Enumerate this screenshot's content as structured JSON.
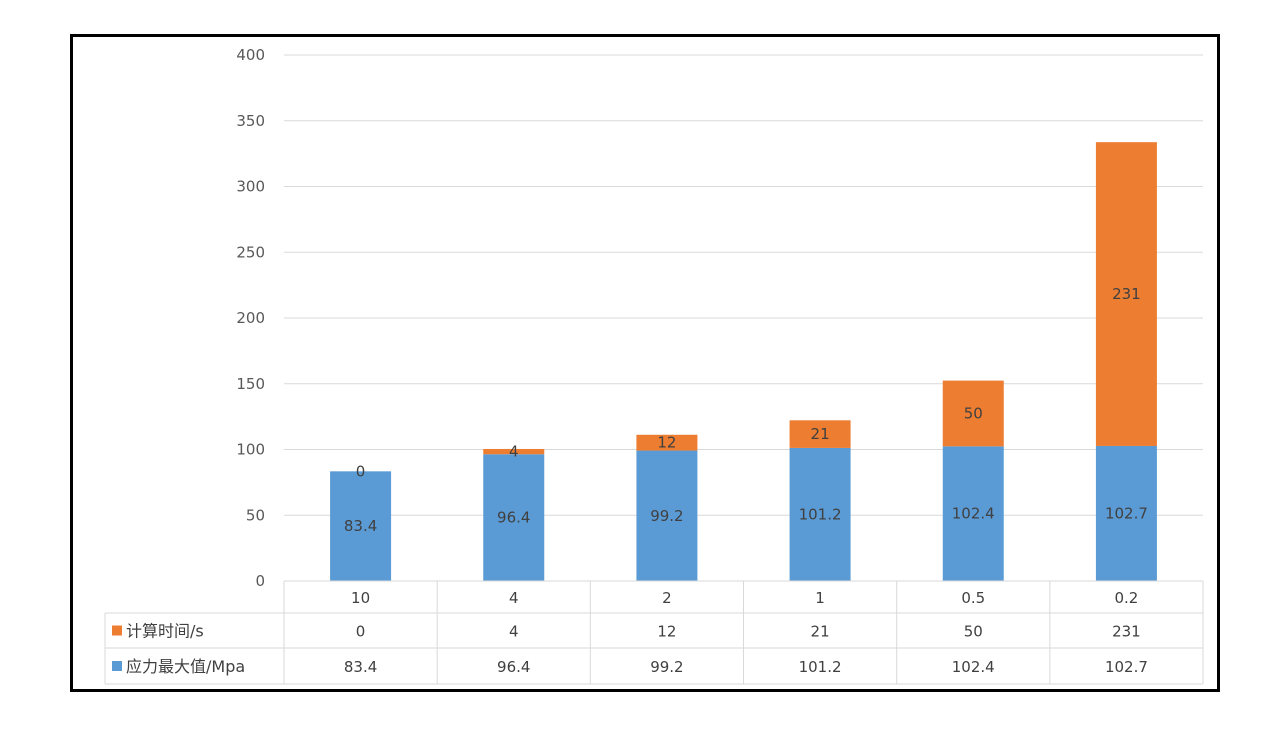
{
  "chart_data": {
    "type": "bar",
    "stacked": true,
    "categories": [
      "10",
      "4",
      "2",
      "1",
      "0.5",
      "0.2"
    ],
    "series": [
      {
        "name": "应力最大值/Mpa",
        "values": [
          83.4,
          96.4,
          99.2,
          101.2,
          102.4,
          102.7
        ],
        "color": "#5B9BD5"
      },
      {
        "name": "计算时间/s",
        "values": [
          0,
          4,
          12,
          21,
          50,
          231
        ],
        "color": "#ED7D31"
      }
    ],
    "ylim": [
      0,
      400
    ],
    "yticks": [
      0,
      50,
      100,
      150,
      200,
      250,
      300,
      350,
      400
    ],
    "grid": true,
    "data_table": true,
    "colors": {
      "gridline": "#D9D9D9",
      "text": "#595959",
      "frame": "#000000"
    }
  }
}
